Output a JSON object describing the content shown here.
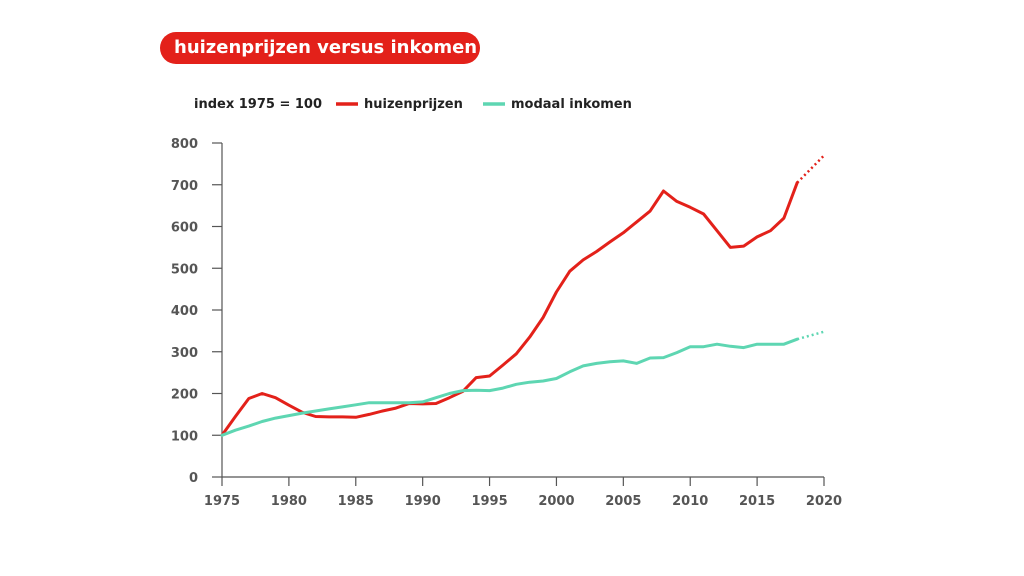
{
  "chart_data": {
    "type": "line",
    "title": "huizenprijzen versus inkomen",
    "note": "index 1975 = 100",
    "xlim": [
      1975,
      2020
    ],
    "ylim": [
      0,
      800
    ],
    "xticks": [
      1975,
      1980,
      1985,
      1990,
      1995,
      2000,
      2005,
      2010,
      2015,
      2020
    ],
    "yticks": [
      0,
      100,
      200,
      300,
      400,
      500,
      600,
      700,
      800
    ],
    "grid": false,
    "legend_position": "top",
    "series": [
      {
        "name": "huizenprijzen",
        "color": "#e3211a",
        "x": [
          1975,
          1976,
          1977,
          1978,
          1979,
          1980,
          1981,
          1982,
          1983,
          1984,
          1985,
          1986,
          1987,
          1988,
          1989,
          1990,
          1991,
          1992,
          1993,
          1994,
          1995,
          1996,
          1997,
          1998,
          1999,
          2000,
          2001,
          2002,
          2003,
          2004,
          2005,
          2006,
          2007,
          2008,
          2009,
          2010,
          2011,
          2012,
          2013,
          2014,
          2015,
          2016,
          2017,
          2018
        ],
        "values": [
          100,
          145,
          188,
          200,
          190,
          172,
          155,
          145,
          144,
          144,
          143,
          150,
          158,
          165,
          176,
          175,
          176,
          190,
          205,
          238,
          242,
          268,
          295,
          335,
          382,
          443,
          493,
          520,
          540,
          563,
          585,
          611,
          637,
          685,
          660,
          646,
          630,
          590,
          550,
          553,
          575,
          590,
          620,
          705
        ],
        "projection": {
          "x": [
            2018,
            2020
          ],
          "values": [
            705,
            770
          ]
        }
      },
      {
        "name": "modaal inkomen",
        "color": "#5ed6b2",
        "x": [
          1975,
          1976,
          1977,
          1978,
          1979,
          1980,
          1981,
          1982,
          1983,
          1984,
          1985,
          1986,
          1987,
          1988,
          1989,
          1990,
          1991,
          1992,
          1993,
          1994,
          1995,
          1996,
          1997,
          1998,
          1999,
          2000,
          2001,
          2002,
          2003,
          2004,
          2005,
          2006,
          2007,
          2008,
          2009,
          2010,
          2011,
          2012,
          2013,
          2014,
          2015,
          2016,
          2017,
          2018
        ],
        "values": [
          100,
          112,
          122,
          133,
          141,
          147,
          153,
          158,
          163,
          168,
          173,
          178,
          178,
          178,
          178,
          180,
          190,
          200,
          207,
          208,
          207,
          213,
          222,
          227,
          230,
          236,
          252,
          266,
          272,
          276,
          278,
          272,
          285,
          286,
          298,
          312,
          312,
          318,
          313,
          310,
          318,
          318,
          318,
          330
        ],
        "projection": {
          "x": [
            2018,
            2020
          ],
          "values": [
            330,
            348
          ]
        }
      }
    ]
  }
}
